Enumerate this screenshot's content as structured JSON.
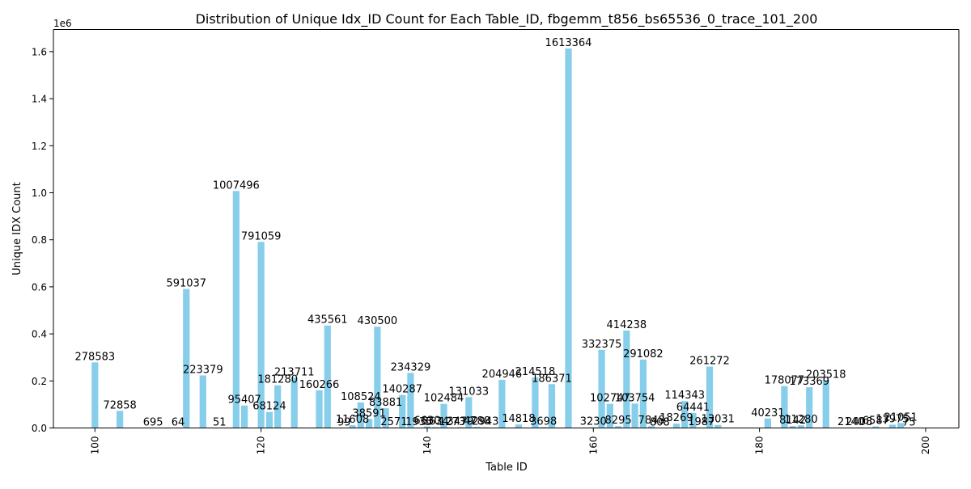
{
  "chart_data": {
    "type": "bar",
    "title": "Distribution of Unique Idx_ID Count for Each Table_ID, fbgemm_t856_bs65536_0_trace_101_200",
    "xlabel": "Table ID",
    "ylabel": "Unique IDX Count",
    "y_offset_label": "1e6",
    "bar_color": "#87ceeb",
    "xlim": [
      95,
      204
    ],
    "ylim": [
      0,
      1694032
    ],
    "xticks": [
      100,
      120,
      140,
      160,
      180,
      200
    ],
    "xtick_labels": [
      "100",
      "120",
      "140",
      "160",
      "180",
      "200"
    ],
    "yticks": [
      0,
      200000,
      400000,
      600000,
      800000,
      1000000,
      1200000,
      1400000,
      1600000
    ],
    "ytick_labels": [
      "0.0",
      "0.2",
      "0.4",
      "0.6",
      "0.8",
      "1.0",
      "1.2",
      "1.4",
      "1.6"
    ],
    "grid": false,
    "data": [
      {
        "x": 100,
        "y": 278583,
        "label": "278583"
      },
      {
        "x": 103,
        "y": 72858,
        "label": "72858"
      },
      {
        "x": 107,
        "y": 695,
        "label": "695"
      },
      {
        "x": 110,
        "y": 64,
        "label": "64"
      },
      {
        "x": 111,
        "y": 591037,
        "label": "591037"
      },
      {
        "x": 113,
        "y": 223379,
        "label": "223379"
      },
      {
        "x": 115,
        "y": 51,
        "label": "51"
      },
      {
        "x": 117,
        "y": 1007496,
        "label": "1007496"
      },
      {
        "x": 118,
        "y": 95407,
        "label": "95407"
      },
      {
        "x": 120,
        "y": 791059,
        "label": "791059"
      },
      {
        "x": 121,
        "y": 68124,
        "label": "68124"
      },
      {
        "x": 122,
        "y": 181280,
        "label": "181280"
      },
      {
        "x": 124,
        "y": 213711,
        "label": "213711"
      },
      {
        "x": 127,
        "y": 160266,
        "label": "160266"
      },
      {
        "x": 128,
        "y": 435561,
        "label": "435561"
      },
      {
        "x": 130,
        "y": 99,
        "label": "99"
      },
      {
        "x": 131,
        "y": 11608,
        "label": "11608"
      },
      {
        "x": 132,
        "y": 108524,
        "label": "108524"
      },
      {
        "x": 133,
        "y": 38591,
        "label": "38591"
      },
      {
        "x": 134,
        "y": 430500,
        "label": "430500"
      },
      {
        "x": 135,
        "y": 83881,
        "label": "83881"
      },
      {
        "x": 136,
        "y": 2571,
        "label": "2571"
      },
      {
        "x": 137,
        "y": 140287,
        "label": "140287"
      },
      {
        "x": 138,
        "y": 234329,
        "label": "234329"
      },
      {
        "x": 139,
        "y": 1935,
        "label": "1935"
      },
      {
        "x": 140,
        "y": 6630,
        "label": "6630"
      },
      {
        "x": 141,
        "y": 3634,
        "label": "3634"
      },
      {
        "x": 142,
        "y": 102484,
        "label": "102484"
      },
      {
        "x": 143,
        "y": 1273,
        "label": "1273"
      },
      {
        "x": 144,
        "y": 3479,
        "label": "3479"
      },
      {
        "x": 145,
        "y": 131033,
        "label": "131033"
      },
      {
        "x": 146,
        "y": 4788,
        "label": "4788"
      },
      {
        "x": 147,
        "y": 2943,
        "label": "2943"
      },
      {
        "x": 149,
        "y": 204946,
        "label": "204946"
      },
      {
        "x": 151,
        "y": 14818,
        "label": "14818"
      },
      {
        "x": 153,
        "y": 214518,
        "label": "214518"
      },
      {
        "x": 154,
        "y": 3698,
        "label": "3698"
      },
      {
        "x": 155,
        "y": 186371,
        "label": "186371"
      },
      {
        "x": 157,
        "y": 1613364,
        "label": "1613364"
      },
      {
        "x": 160,
        "y": 3230,
        "label": "3230"
      },
      {
        "x": 161,
        "y": 332375,
        "label": "332375"
      },
      {
        "x": 162,
        "y": 102747,
        "label": "102747"
      },
      {
        "x": 163,
        "y": 8295,
        "label": "8295"
      },
      {
        "x": 164,
        "y": 414238,
        "label": "414238"
      },
      {
        "x": 165,
        "y": 103754,
        "label": "103754"
      },
      {
        "x": 166,
        "y": 291082,
        "label": "291082"
      },
      {
        "x": 167,
        "y": 7848,
        "label": "7848"
      },
      {
        "x": 168,
        "y": 808,
        "label": "808"
      },
      {
        "x": 170,
        "y": 18269,
        "label": "18269"
      },
      {
        "x": 171,
        "y": 114343,
        "label": "114343"
      },
      {
        "x": 172,
        "y": 64441,
        "label": "64441"
      },
      {
        "x": 173,
        "y": 1987,
        "label": "1987"
      },
      {
        "x": 174,
        "y": 261272,
        "label": "261272"
      },
      {
        "x": 175,
        "y": 13031,
        "label": "13031"
      },
      {
        "x": 181,
        "y": 40231,
        "label": "40231"
      },
      {
        "x": 183,
        "y": 178077,
        "label": "178077"
      },
      {
        "x": 184,
        "y": 8142,
        "label": "8142"
      },
      {
        "x": 185,
        "y": 11280,
        "label": "11280"
      },
      {
        "x": 186,
        "y": 173369,
        "label": "173369"
      },
      {
        "x": 188,
        "y": 203518,
        "label": "203518"
      },
      {
        "x": 191,
        "y": 2140,
        "label": "2140"
      },
      {
        "x": 192,
        "y": 2408,
        "label": "2408"
      },
      {
        "x": 194,
        "y": 6587,
        "label": "6587"
      },
      {
        "x": 196,
        "y": 13975,
        "label": "13975"
      },
      {
        "x": 197,
        "y": 21051,
        "label": "21051"
      },
      {
        "x": 198,
        "y": 75,
        "label": "75"
      }
    ]
  }
}
